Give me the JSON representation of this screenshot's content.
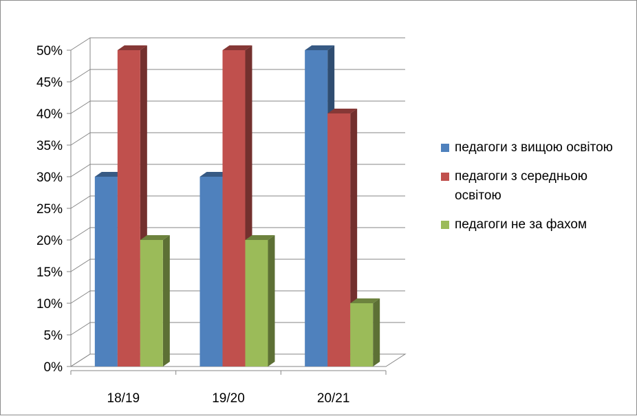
{
  "chart_data": {
    "type": "bar",
    "categories": [
      "18/19",
      "19/20",
      "20/21"
    ],
    "series": [
      {
        "name": "педагоги з вищою освітою",
        "values": [
          30,
          30,
          50
        ],
        "color": "#4f81bd"
      },
      {
        "name": "педагоги з середньою освітою",
        "values": [
          50,
          50,
          40
        ],
        "color": "#c0504d"
      },
      {
        "name": "педагоги не за фахом",
        "values": [
          20,
          20,
          10
        ],
        "color": "#9bbb59"
      }
    ],
    "ylim": [
      0,
      50
    ],
    "yticks": [
      "0%",
      "5%",
      "10%",
      "15%",
      "20%",
      "25%",
      "30%",
      "35%",
      "40%",
      "45%",
      "50%"
    ],
    "grid": true,
    "legend_position": "right",
    "style": "3d-clustered-column"
  }
}
